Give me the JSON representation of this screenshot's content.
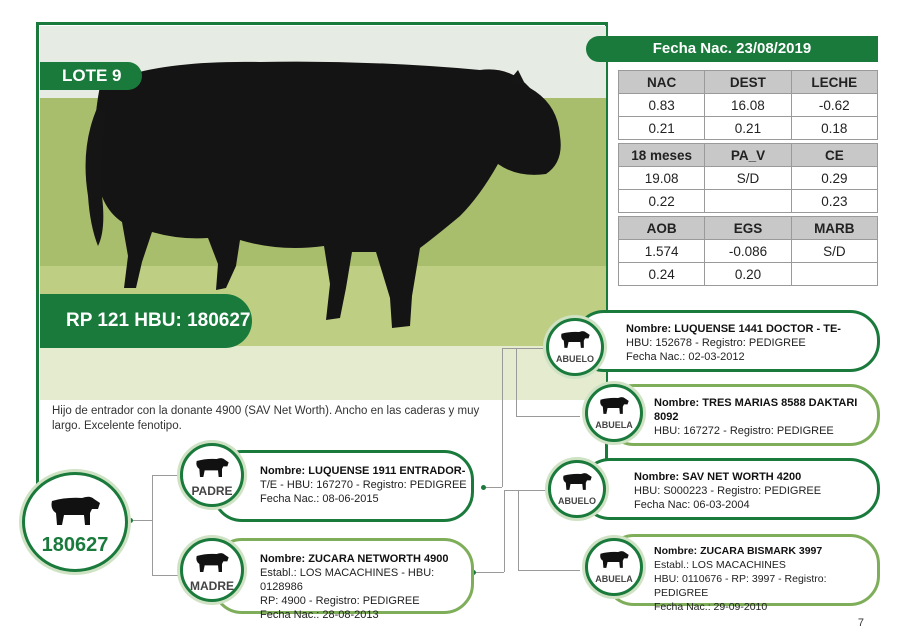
{
  "lot": {
    "label": "LOTE 9",
    "rp": "RP 121 HBU: 180627",
    "id_number": "180627"
  },
  "description": "Hijo de entrador con la donante 4900 (SAV Net Worth). Ancho en las caderas y muy largo. Excelente fenotipo.",
  "birth": "Fecha Nac. 23/08/2019",
  "tables": [
    {
      "headers": [
        "NAC",
        "DEST",
        "LECHE"
      ],
      "rows": [
        [
          "0.83",
          "16.08",
          "-0.62"
        ],
        [
          "0.21",
          "0.21",
          "0.18"
        ]
      ]
    },
    {
      "headers": [
        "18 meses",
        "PA_V",
        "CE"
      ],
      "rows": [
        [
          "19.08",
          "S/D",
          "0.29"
        ],
        [
          "0.22",
          "",
          "0.23"
        ]
      ]
    },
    {
      "headers": [
        "AOB",
        "EGS",
        "MARB"
      ],
      "rows": [
        [
          "1.574",
          "-0.086",
          "S/D"
        ],
        [
          "0.24",
          "0.20",
          ""
        ]
      ]
    }
  ],
  "pedigree": {
    "padre": {
      "label": "PADRE",
      "l1": "Nombre: LUQUENSE 1911 ENTRADOR-",
      "l2": "T/E - HBU: 167270 - Registro: PEDIGREE",
      "l3": "Fecha Nac.: 08-06-2015"
    },
    "madre": {
      "label": "MADRE",
      "l1": "Nombre: ZUCARA NETWORTH 4900",
      "l2": "Establ.: LOS MACACHINES - HBU: 0128986",
      "l3": "RP: 4900 - Registro: PEDIGREE",
      "l4": "Fecha Nac.: 28-08-2013"
    },
    "abuelo_p": {
      "label": "ABUELO",
      "l1": "Nombre: LUQUENSE 1441 DOCTOR - TE-",
      "l2": "HBU: 152678 - Registro: PEDIGREE",
      "l3": "Fecha Nac.: 02-03-2012"
    },
    "abuela_p": {
      "label": "ABUELA",
      "l1": "Nombre: TRES MARIAS 8588 DAKTARI",
      "l2": "8092",
      "l3": "HBU: 167272 - Registro: PEDIGREE"
    },
    "abuelo_m": {
      "label": "ABUELO",
      "l1": "Nombre: SAV NET WORTH 4200",
      "l2": "HBU: S000223 - Registro: PEDIGREE",
      "l3": "Fecha Nac: 06-03-2004"
    },
    "abuela_m": {
      "label": "ABUELA",
      "l1": "Nombre: ZUCARA BISMARK 3997",
      "l2": "Establ.: LOS MACACHINES",
      "l3": "HBU: 0110676 - RP: 3997 - Registro: PEDIGREE",
      "l4": "Fecha Nac.: 29-09-2010"
    }
  },
  "page_number": "7",
  "icons": {
    "cow": "cow-icon"
  },
  "colors": {
    "brand_green": "#1a7a3c",
    "light_green": "#7fae5a",
    "header_gray": "#c8c8c8"
  }
}
